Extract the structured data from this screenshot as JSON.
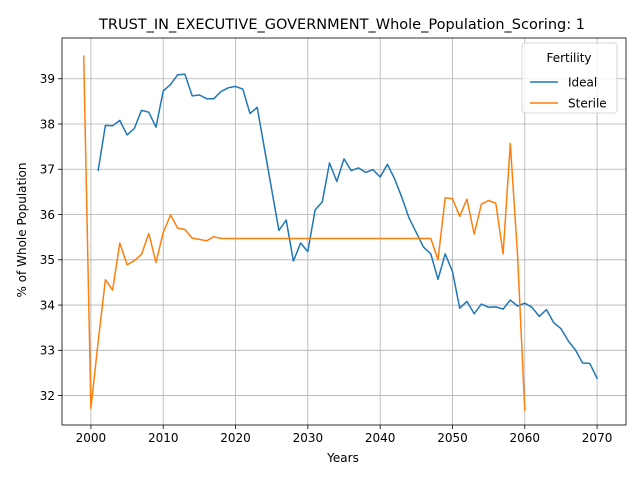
{
  "chart_data": {
    "type": "line",
    "title": "TRUST_IN_EXECUTIVE_GOVERNMENT_Whole_Population_Scoring: 1",
    "xlabel": "Years",
    "ylabel": "% of Whole Population",
    "xlim": [
      1996,
      2074
    ],
    "ylim": [
      31.35,
      39.9
    ],
    "x_ticks": [
      2000,
      2010,
      2020,
      2030,
      2040,
      2050,
      2060,
      2070
    ],
    "y_ticks": [
      32,
      33,
      34,
      35,
      36,
      37,
      38,
      39
    ],
    "grid": true,
    "legend": {
      "title": "Fertility",
      "position": "top-right"
    },
    "series": [
      {
        "name": "Ideal",
        "color": "#1f77b4",
        "x": [
          2001,
          2002,
          2003,
          2004,
          2005,
          2006,
          2007,
          2008,
          2009,
          2010,
          2011,
          2012,
          2013,
          2014,
          2015,
          2016,
          2017,
          2018,
          2019,
          2020,
          2021,
          2022,
          2023,
          2024,
          2025,
          2026,
          2027,
          2028,
          2029,
          2030,
          2031,
          2032,
          2033,
          2034,
          2035,
          2036,
          2037,
          2038,
          2039,
          2040,
          2041,
          2042,
          2043,
          2044,
          2045,
          2046,
          2047,
          2048,
          2049,
          2050,
          2051,
          2052,
          2053,
          2054,
          2055,
          2056,
          2057,
          2058,
          2059,
          2060,
          2061,
          2062,
          2063,
          2064,
          2065,
          2066,
          2067,
          2068,
          2069,
          2070
        ],
        "values": [
          36.98,
          37.97,
          37.96,
          38.08,
          37.76,
          37.9,
          38.3,
          38.26,
          37.93,
          38.73,
          38.87,
          39.09,
          39.1,
          38.62,
          38.64,
          38.56,
          38.56,
          38.72,
          38.8,
          38.83,
          38.77,
          38.23,
          38.37,
          37.45,
          36.55,
          35.65,
          35.88,
          34.97,
          35.37,
          35.18,
          36.1,
          36.28,
          37.14,
          36.73,
          37.23,
          36.97,
          37.03,
          36.93,
          36.99,
          36.83,
          37.11,
          36.79,
          36.38,
          35.92,
          35.6,
          35.28,
          35.13,
          34.57,
          35.13,
          34.74,
          33.93,
          34.08,
          33.81,
          34.02,
          33.95,
          33.96,
          33.91,
          34.11,
          33.98,
          34.04,
          33.95,
          33.75,
          33.9,
          33.61,
          33.48,
          33.21,
          33.01,
          32.72,
          32.71,
          32.38
        ]
      },
      {
        "name": "Sterile",
        "color": "#ff7f0e",
        "x": [
          1999,
          2000,
          2001,
          2002,
          2003,
          2004,
          2005,
          2006,
          2007,
          2008,
          2009,
          2010,
          2011,
          2012,
          2013,
          2014,
          2015,
          2016,
          2017,
          2018,
          2019,
          2020,
          2021,
          2022,
          2023,
          2024,
          2025,
          2026,
          2027,
          2028,
          2029,
          2030,
          2031,
          2032,
          2033,
          2034,
          2035,
          2036,
          2037,
          2038,
          2039,
          2040,
          2041,
          2042,
          2043,
          2044,
          2045,
          2046,
          2047,
          2048,
          2049,
          2050,
          2051,
          2052,
          2053,
          2054,
          2055,
          2056,
          2057,
          2058,
          2059,
          2060
        ],
        "values": [
          39.5,
          31.72,
          33.2,
          34.56,
          34.33,
          35.37,
          34.89,
          34.98,
          35.12,
          35.58,
          34.94,
          35.6,
          35.99,
          35.7,
          35.67,
          35.48,
          35.45,
          35.42,
          35.51,
          35.47,
          35.47,
          35.47,
          35.47,
          35.47,
          35.47,
          35.47,
          35.47,
          35.47,
          35.47,
          35.47,
          35.47,
          35.47,
          35.47,
          35.47,
          35.47,
          35.47,
          35.47,
          35.47,
          35.47,
          35.47,
          35.47,
          35.47,
          35.47,
          35.47,
          35.47,
          35.47,
          35.47,
          35.47,
          35.47,
          35.0,
          36.37,
          36.35,
          35.96,
          36.34,
          35.57,
          36.23,
          36.31,
          36.25,
          35.13,
          37.57,
          35.12,
          31.68
        ]
      }
    ]
  }
}
